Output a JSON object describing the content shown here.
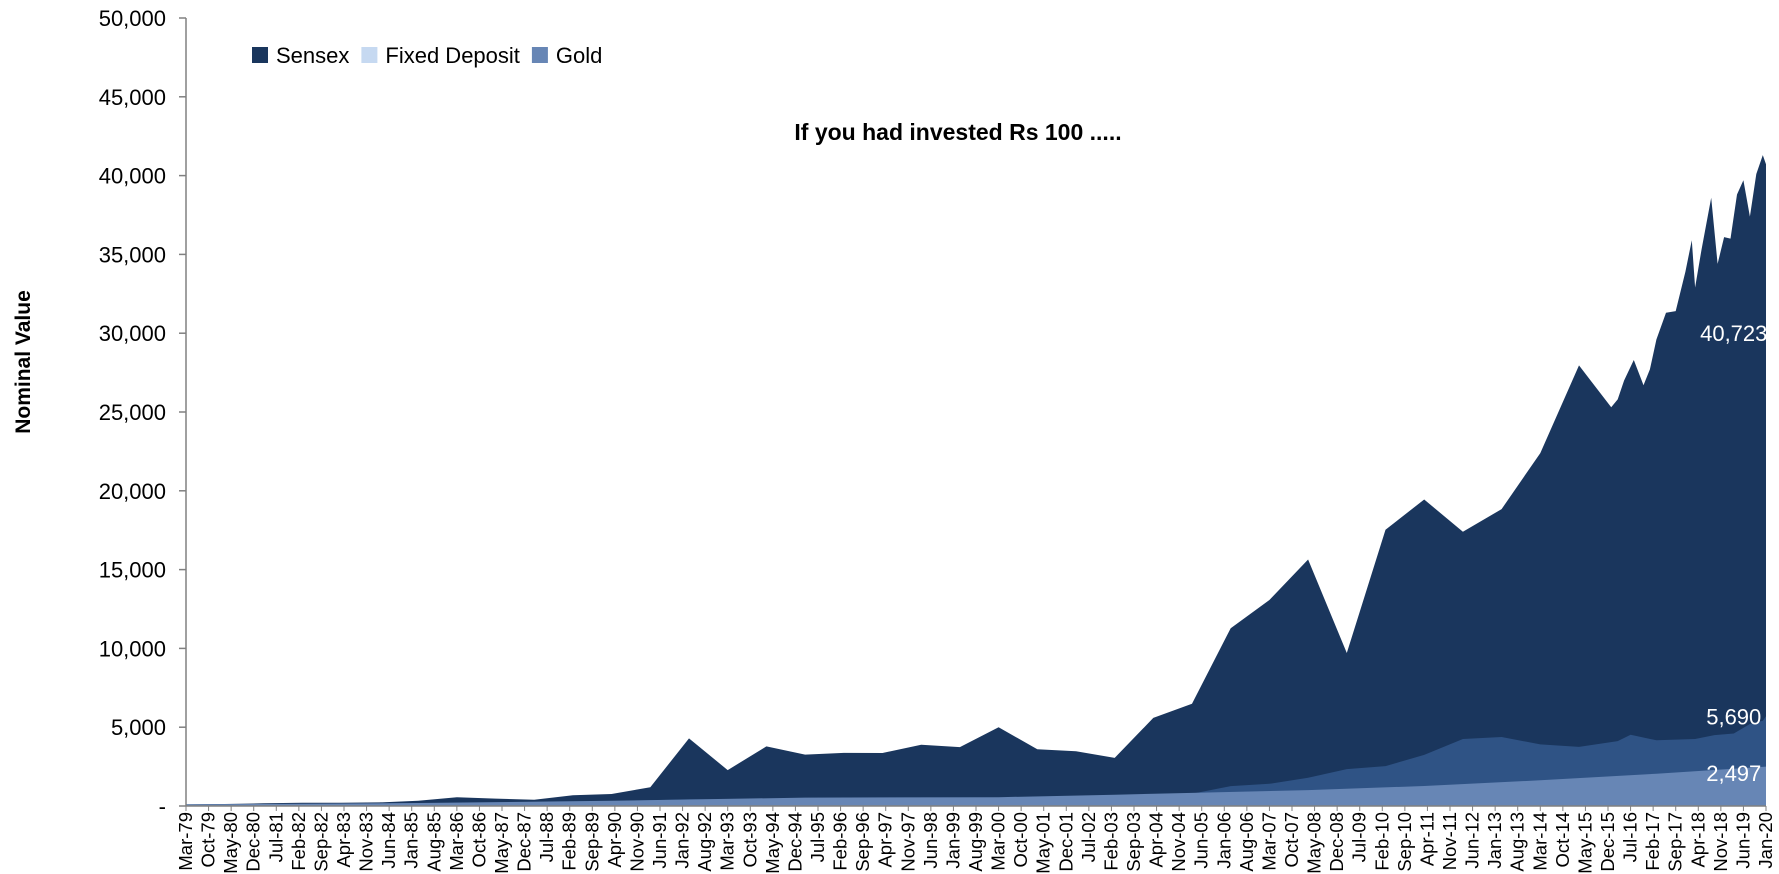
{
  "chart_data": {
    "type": "area",
    "stacked": false,
    "title": "If you had invested Rs 100 .....",
    "xlabel": "",
    "ylabel": "Nominal Value",
    "ylim": [
      0,
      50000
    ],
    "y_ticks": [
      0,
      5000,
      10000,
      15000,
      20000,
      25000,
      30000,
      35000,
      40000,
      45000,
      50000
    ],
    "y_tick_labels": [
      "-",
      "5,000",
      "10,000",
      "15,000",
      "20,000",
      "25,000",
      "30,000",
      "35,000",
      "40,000",
      "45,000",
      "50,000"
    ],
    "x_range": [
      "1979-03",
      "2020-01"
    ],
    "x_tick_labels": [
      "Mar-79",
      "Oct-79",
      "May-80",
      "Dec-80",
      "Jul-81",
      "Feb-82",
      "Sep-82",
      "Apr-83",
      "Nov-83",
      "Jun-84",
      "Jan-85",
      "Aug-85",
      "Mar-86",
      "Oct-86",
      "May-87",
      "Dec-87",
      "Jul-88",
      "Feb-89",
      "Sep-89",
      "Apr-90",
      "Nov-90",
      "Jun-91",
      "Jan-92",
      "Aug-92",
      "Mar-93",
      "Oct-93",
      "May-94",
      "Dec-94",
      "Jul-95",
      "Feb-96",
      "Sep-96",
      "Apr-97",
      "Nov-97",
      "Jun-98",
      "Jan-99",
      "Aug-99",
      "Mar-00",
      "Oct-00",
      "May-01",
      "Dec-01",
      "Jul-02",
      "Feb-03",
      "Sep-03",
      "Apr-04",
      "Nov-04",
      "Jun-05",
      "Jan-06",
      "Aug-06",
      "Mar-07",
      "Oct-07",
      "May-08",
      "Dec-08",
      "Jul-09",
      "Feb-10",
      "Sep-10",
      "Apr-11",
      "Nov-11",
      "Jun-12",
      "Jan-13",
      "Aug-13",
      "Mar-14",
      "Oct-14",
      "May-15",
      "Dec-15",
      "Jul-16",
      "Feb-17",
      "Sep-17",
      "Apr-18",
      "Nov-18",
      "Jun-19",
      "Jan-20"
    ],
    "legend_position": "top-left",
    "grid": false,
    "series": [
      {
        "name": "Sensex",
        "color": "#1a365d",
        "points": [
          [
            "1979-03",
            100
          ],
          [
            "1980-03",
            130
          ],
          [
            "1981-03",
            170
          ],
          [
            "1982-03",
            200
          ],
          [
            "1983-03",
            210
          ],
          [
            "1984-03",
            230
          ],
          [
            "1985-03",
            330
          ],
          [
            "1986-03",
            550
          ],
          [
            "1987-03",
            470
          ],
          [
            "1988-03",
            400
          ],
          [
            "1989-03",
            680
          ],
          [
            "1990-03",
            760
          ],
          [
            "1991-03",
            1190
          ],
          [
            "1992-03",
            4290
          ],
          [
            "1993-03",
            2280
          ],
          [
            "1994-03",
            3780
          ],
          [
            "1995-03",
            3260
          ],
          [
            "1996-03",
            3370
          ],
          [
            "1997-03",
            3360
          ],
          [
            "1998-03",
            3890
          ],
          [
            "1999-03",
            3740
          ],
          [
            "2000-03",
            5000
          ],
          [
            "2001-03",
            3600
          ],
          [
            "2002-03",
            3470
          ],
          [
            "2003-03",
            3050
          ],
          [
            "2004-03",
            5590
          ],
          [
            "2005-03",
            6490
          ],
          [
            "2006-03",
            11280
          ],
          [
            "2007-03",
            13070
          ],
          [
            "2008-03",
            15640
          ],
          [
            "2009-03",
            9710
          ],
          [
            "2010-03",
            17530
          ],
          [
            "2011-03",
            19450
          ],
          [
            "2012-03",
            17400
          ],
          [
            "2013-03",
            18840
          ],
          [
            "2014-03",
            22390
          ],
          [
            "2015-03",
            27960
          ],
          [
            "2016-01",
            25300
          ],
          [
            "2016-03",
            25800
          ],
          [
            "2016-05",
            27000
          ],
          [
            "2016-08",
            28300
          ],
          [
            "2016-11",
            26700
          ],
          [
            "2017-01",
            27700
          ],
          [
            "2017-03",
            29600
          ],
          [
            "2017-06",
            31300
          ],
          [
            "2017-09",
            31400
          ],
          [
            "2017-12",
            33900
          ],
          [
            "2018-02",
            35900
          ],
          [
            "2018-03",
            32900
          ],
          [
            "2018-05",
            35300
          ],
          [
            "2018-08",
            38600
          ],
          [
            "2018-10",
            34400
          ],
          [
            "2018-12",
            36100
          ],
          [
            "2019-02",
            36000
          ],
          [
            "2019-04",
            38800
          ],
          [
            "2019-06",
            39700
          ],
          [
            "2019-08",
            37400
          ],
          [
            "2019-10",
            40100
          ],
          [
            "2019-12",
            41300
          ],
          [
            "2020-01",
            40723
          ]
        ]
      },
      {
        "name": "Fixed Deposit",
        "color": "#c6d9f1",
        "points": [
          [
            "1979-03",
            100
          ],
          [
            "1985-03",
            190
          ],
          [
            "1990-03",
            330
          ],
          [
            "1995-03",
            530
          ],
          [
            "2000-03",
            560
          ],
          [
            "2003-03",
            720
          ],
          [
            "2005-03",
            830
          ],
          [
            "2008-03",
            1010
          ],
          [
            "2011-03",
            1270
          ],
          [
            "2014-03",
            1630
          ],
          [
            "2017-03",
            2050
          ],
          [
            "2020-01",
            2497
          ]
        ]
      },
      {
        "name": "Gold",
        "color": "#6786b5",
        "points": [
          [
            "1979-03",
            100
          ],
          [
            "1985-03",
            160
          ],
          [
            "1990-03",
            300
          ],
          [
            "1992-03",
            430
          ],
          [
            "1995-03",
            420
          ],
          [
            "2000-03",
            450
          ],
          [
            "2003-03",
            600
          ],
          [
            "2005-03",
            780
          ],
          [
            "2006-03",
            1260
          ],
          [
            "2007-03",
            1410
          ],
          [
            "2008-03",
            1790
          ],
          [
            "2009-03",
            2340
          ],
          [
            "2010-03",
            2530
          ],
          [
            "2011-03",
            3240
          ],
          [
            "2012-03",
            4250
          ],
          [
            "2013-03",
            4380
          ],
          [
            "2014-03",
            3910
          ],
          [
            "2015-03",
            3750
          ],
          [
            "2016-03",
            4120
          ],
          [
            "2016-07",
            4520
          ],
          [
            "2017-03",
            4170
          ],
          [
            "2018-03",
            4250
          ],
          [
            "2018-09",
            4500
          ],
          [
            "2019-03",
            4600
          ],
          [
            "2019-08",
            5200
          ],
          [
            "2019-12",
            5410
          ],
          [
            "2020-01",
            5690
          ]
        ]
      }
    ],
    "overlap_colors": {
      "gold_over_fixed_deposit": "#2f5385",
      "fixed_deposit_over_gold": "#6786b5"
    },
    "annotations": [
      {
        "text": "40,723",
        "series": "Sensex",
        "x": "2019-03",
        "y": 30000
      },
      {
        "text": "5,690",
        "series": "Gold",
        "x": "2019-03",
        "y": 5690
      },
      {
        "text": "2,497",
        "series": "Fixed Deposit",
        "x": "2019-03",
        "y": 2100
      }
    ]
  }
}
